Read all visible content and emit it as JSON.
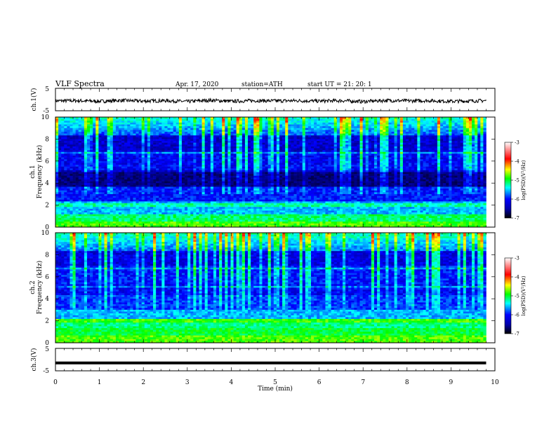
{
  "header": {
    "title": "VLF  Spectra",
    "date": "Apr. 17, 2020",
    "station": "station=ATH",
    "start": "start  UT  =    21: 20: 1"
  },
  "chart_data": [
    {
      "type": "line",
      "ylabel": "ch.1(V)",
      "xlim": [
        0,
        10
      ],
      "ylim": [
        -5,
        5
      ],
      "yticks": [
        "5",
        "-5"
      ],
      "x": [
        0,
        0.5,
        1,
        1.5,
        2,
        2.5,
        3,
        3.5,
        4,
        4.5,
        5,
        5.5,
        6,
        6.5,
        7,
        7.5,
        8,
        8.5,
        9,
        9.5,
        9.8
      ],
      "y": [
        -0.6,
        -0.5,
        -0.8,
        -0.4,
        -0.7,
        -0.5,
        -0.9,
        -0.3,
        -0.8,
        -0.5,
        -0.6,
        -0.5,
        -0.7,
        -0.5,
        -0.9,
        -0.4,
        -0.6,
        -0.5,
        -0.8,
        -0.6,
        -0.5
      ]
    },
    {
      "type": "heatmap",
      "ylabel": "Frequency (kHz)",
      "channel": "ch.1",
      "xlim": [
        0,
        10
      ],
      "ylim": [
        0,
        10
      ],
      "yticks": [
        "0",
        "2",
        "4",
        "6",
        "8",
        "10"
      ],
      "colorbar": {
        "label": "log(PSD)(V²/Hz)",
        "range": [
          -7,
          -3
        ],
        "ticks": [
          "-3",
          "-4",
          "-5",
          "-6",
          "-7"
        ]
      }
    },
    {
      "type": "heatmap",
      "ylabel": "Frequency (kHz)",
      "channel": "ch.2",
      "xlim": [
        0,
        10
      ],
      "ylim": [
        0,
        10
      ],
      "yticks": [
        "0",
        "2",
        "4",
        "6",
        "8",
        "10"
      ],
      "colorbar": {
        "label": "log(PSD)(V²/Hz)",
        "range": [
          -7,
          -3
        ],
        "ticks": [
          "-3",
          "-4",
          "-5",
          "-6",
          "-7"
        ]
      }
    },
    {
      "type": "line",
      "ylabel": "ch.3(V)",
      "xlim": [
        0,
        10
      ],
      "ylim": [
        -5,
        5
      ],
      "yticks": [
        "5",
        "-5"
      ],
      "x": [
        0,
        9.8
      ],
      "y": [
        -1.5,
        -1.5
      ]
    }
  ],
  "xaxis": {
    "label": "Time  (min)",
    "ticks": [
      "0",
      "1",
      "2",
      "3",
      "4",
      "5",
      "6",
      "7",
      "8",
      "9",
      "10"
    ]
  },
  "colors": {
    "colormap": [
      "#000000",
      "#0000ff",
      "#00ffff",
      "#00ff00",
      "#ffff00",
      "#ff0000",
      "#ffffff"
    ]
  }
}
